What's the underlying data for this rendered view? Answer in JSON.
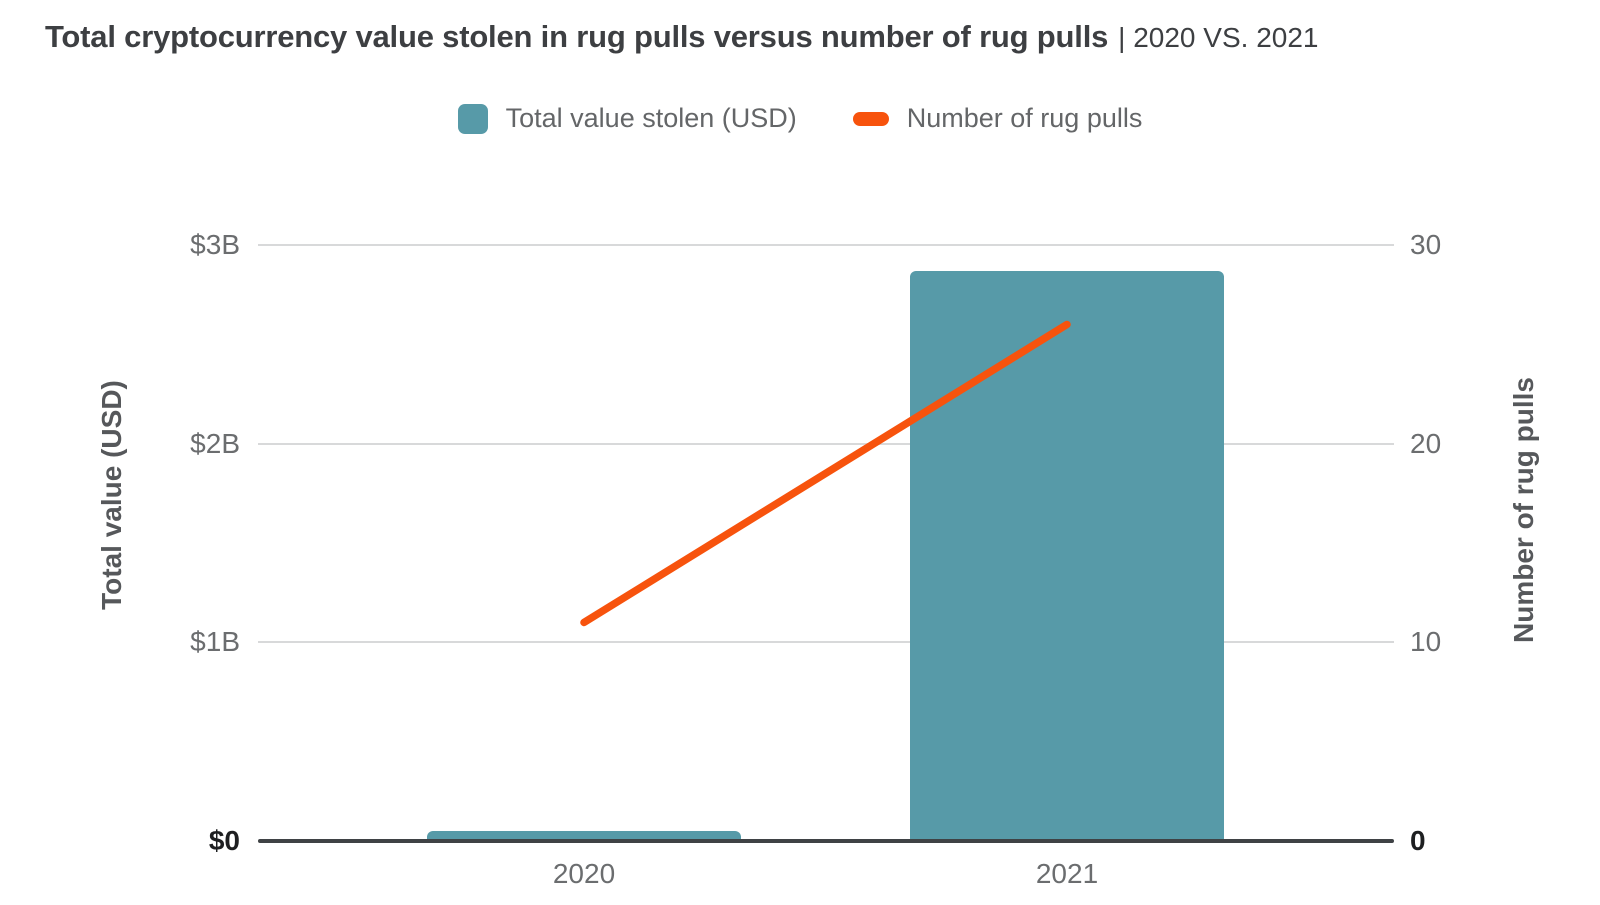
{
  "title": {
    "main": "Total cryptocurrency value stolen in rug pulls versus number of rug pulls",
    "subtitle": "| 2020 VS. 2021"
  },
  "legend": {
    "bar_label": "Total value stolen (USD)",
    "line_label": "Number of rug pulls",
    "position": "top-center"
  },
  "colors": {
    "bar": "#579AA8",
    "line": "#F7530D",
    "gridline": "#D8D9DA",
    "baseline": "#3F4245",
    "title_text": "#3D3F42",
    "tick_text": "#6B6D6F",
    "axis_title_text": "#56585B",
    "zero_tick_text": "#1E1F21",
    "background": "#FFFFFF"
  },
  "chart_data": {
    "type": "bar",
    "subtype": "dual-axis bar + line combo",
    "categories": [
      "2020",
      "2021"
    ],
    "series": [
      {
        "name": "Total value stolen (USD)",
        "kind": "bar",
        "axis": "left",
        "values": [
          0.05,
          2.87
        ],
        "units": "USD billions"
      },
      {
        "name": "Number of rug pulls",
        "kind": "line",
        "axis": "right",
        "values": [
          11,
          26
        ],
        "units": "count"
      }
    ],
    "left_axis": {
      "label": "Total value (USD)",
      "range": [
        0,
        3
      ],
      "ticks": [
        {
          "value": 3,
          "label": "$3B"
        },
        {
          "value": 2,
          "label": "$2B"
        },
        {
          "value": 1,
          "label": "$1B"
        },
        {
          "value": 0,
          "label": "$0"
        }
      ]
    },
    "right_axis": {
      "label": "Number of rug pulls",
      "range": [
        0,
        30
      ],
      "ticks": [
        {
          "value": 30,
          "label": "30"
        },
        {
          "value": 20,
          "label": "20"
        },
        {
          "value": 10,
          "label": "10"
        },
        {
          "value": 0,
          "label": "0"
        }
      ]
    },
    "grid": "horizontal gridlines on",
    "legend_position": "top-center"
  }
}
